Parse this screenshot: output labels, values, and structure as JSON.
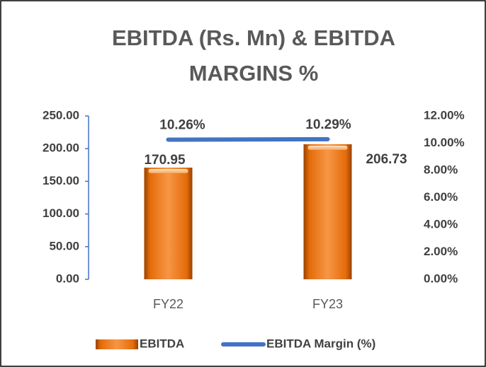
{
  "chart_data": {
    "type": "bar",
    "title": [
      "EBITDA (Rs. Mn) & EBITDA",
      "MARGINS %"
    ],
    "categories": [
      "FY22",
      "FY23"
    ],
    "series": [
      {
        "name": "EBITDA",
        "type": "bar",
        "color": "#e46c0a",
        "values": [
          170.95,
          206.73
        ]
      },
      {
        "name": "EBITDA Margin (%)",
        "type": "line",
        "axis": "y2",
        "color": "#4472c4",
        "values": [
          10.26,
          10.29
        ],
        "value_labels": [
          "10.26%",
          "10.29%"
        ]
      }
    ],
    "ylim": [
      0,
      250
    ],
    "yticks": [
      {
        "value": 0,
        "label": "0.00"
      },
      {
        "value": 50,
        "label": "50.00"
      },
      {
        "value": 100,
        "label": "100.00"
      },
      {
        "value": 150,
        "label": "150.00"
      },
      {
        "value": 200,
        "label": "200.00"
      },
      {
        "value": 250,
        "label": "250.00"
      }
    ],
    "y2lim": [
      0,
      12
    ],
    "y2ticks": [
      {
        "value": 0,
        "label": "0.00%"
      },
      {
        "value": 2,
        "label": "2.00%"
      },
      {
        "value": 4,
        "label": "4.00%"
      },
      {
        "value": 6,
        "label": "6.00%"
      },
      {
        "value": 8,
        "label": "8.00%"
      },
      {
        "value": 10,
        "label": "10.00%"
      },
      {
        "value": 12,
        "label": "12.00%"
      }
    ],
    "grid": false,
    "legend": "bottom"
  }
}
